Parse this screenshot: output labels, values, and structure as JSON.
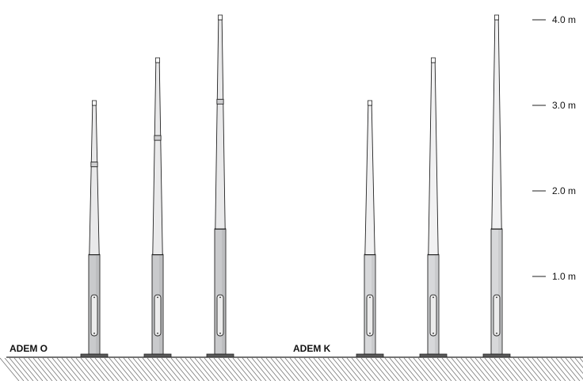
{
  "groups": [
    {
      "label": "ADEM O",
      "poles": [
        {
          "height_m": 3.0,
          "style": "O",
          "joint_m": 1.2
        },
        {
          "height_m": 3.5,
          "style": "O",
          "joint_m": 1.2
        },
        {
          "height_m": 4.0,
          "style": "O",
          "joint_m": 1.5
        }
      ]
    },
    {
      "label": "ADEM K",
      "poles": [
        {
          "height_m": 3.0,
          "style": "K",
          "joint_m": 1.2
        },
        {
          "height_m": 3.5,
          "style": "K",
          "joint_m": 1.2
        },
        {
          "height_m": 4.0,
          "style": "K",
          "joint_m": 1.5
        }
      ]
    }
  ],
  "scale": {
    "ticks": [
      {
        "value_m": 4.0,
        "label": "4.0 m"
      },
      {
        "value_m": 3.0,
        "label": "3.0 m"
      },
      {
        "value_m": 2.0,
        "label": "2.0 m"
      },
      {
        "value_m": 1.0,
        "label": "1.0 m"
      }
    ]
  },
  "colors": {
    "outline": "#222222",
    "pole_upper_O": "#e9e9ea",
    "pole_lower_O": "#c9cacc",
    "pole_upper_K": "#f1f1f2",
    "pole_lower_K": "#d7d8da",
    "base": "#5a5a5a",
    "hatch": "#777777"
  }
}
